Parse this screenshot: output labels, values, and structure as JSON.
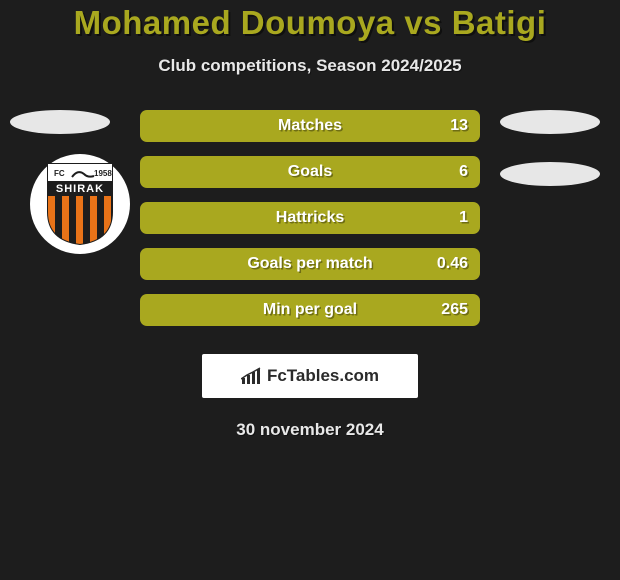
{
  "background_color": "#1d1d1d",
  "title": "Mohamed Doumoya vs Batigi",
  "title_color": "#a9a81f",
  "subtitle": "Club competitions, Season 2024/2025",
  "subtitle_color": "#e8e8e8",
  "bar_color": "#a9a81f",
  "label_color": "#ffffff",
  "value_color": "#ffffff",
  "ellipse_color": "#e7e7e7",
  "brand_bg": "#ffffff",
  "brand_text_color": "#2b2b2b",
  "brand_text": "FcTables.com",
  "date_text": "30 november 2024",
  "date_color": "#e8e8e8",
  "stats": [
    {
      "label": "Matches",
      "value": "13"
    },
    {
      "label": "Goals",
      "value": "6"
    },
    {
      "label": "Hattricks",
      "value": "1"
    },
    {
      "label": "Goals per match",
      "value": "0.46"
    },
    {
      "label": "Min per goal",
      "value": "265"
    }
  ],
  "badge": {
    "top_text": "FC",
    "top_year": "1958",
    "name": "SHIRAK",
    "name_bg": "#1d1d1d",
    "name_color": "#ffffff",
    "stripe_a": "#e97318",
    "stripe_b": "#1d1d1d",
    "border": "#1d1d1d"
  }
}
